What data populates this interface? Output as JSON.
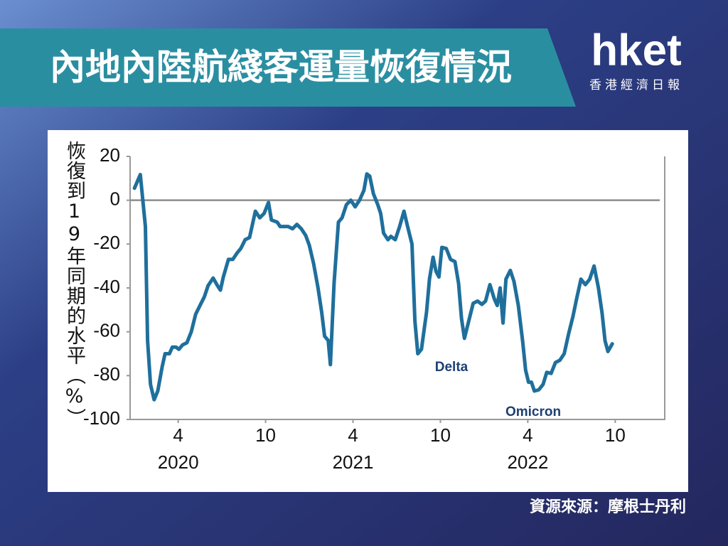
{
  "chart_data": {
    "type": "line",
    "title": "內地內陸航綫客運量恢復情況",
    "brand": "hket",
    "brand_subtitle": "香港經濟日報",
    "y_label": "恢復到19年同期的水平（%）",
    "source": "資源來源：摩根士丹利",
    "annotations": [
      "Delta",
      "Omicron"
    ],
    "color": "#1f6f9c",
    "x": [
      0,
      0.4,
      0.75,
      0.9,
      1.1,
      1.35,
      1.6,
      1.9,
      2.1,
      2.4,
      2.6,
      2.85,
      3.05,
      3.3,
      3.6,
      3.9,
      4.2,
      4.5,
      4.8,
      5.05,
      5.4,
      5.7,
      5.9,
      6.1,
      6.45,
      6.75,
      7.05,
      7.3,
      7.6,
      7.9,
      8.3,
      8.6,
      8.9,
      9.2,
      9.4,
      9.8,
      10,
      10.3,
      10.55,
      10.85,
      11.15,
      11.45,
      11.75,
      12,
      12.3,
      12.6,
      12.85,
      13.05,
      13.3,
      13.45,
      13.7,
      14,
      14.25,
      14.55,
      14.85,
      15.15,
      15.45,
      15.75,
      15.95,
      16.15,
      16.4,
      16.7,
      16.9,
      17.1,
      17.4,
      17.6,
      17.9,
      18.2,
      18.5,
      18.75,
      19.05,
      19.25,
      19.45,
      19.7,
      20.05,
      20.25,
      20.5,
      20.7,
      20.9,
      21.1,
      21.4,
      21.7,
      22,
      22.25,
      22.45,
      22.65,
      22.95,
      23.25,
      23.55,
      23.85,
      24.1,
      24.4,
      24.7,
      24.9,
      25.1,
      25.3,
      25.5,
      25.8,
      26.05,
      26.35,
      26.65,
      26.85,
      27.05,
      27.25,
      27.45,
      27.75,
      28.05,
      28.3,
      28.6,
      28.9,
      29.2,
      29.5,
      29.8,
      30.1,
      30.35,
      30.65,
      30.95,
      31.25,
      31.55,
      31.85,
      32.1,
      32.3,
      32.5,
      32.8
    ],
    "values": [
      5.5,
      11.7,
      -12,
      -64,
      -84,
      -91,
      -87,
      -76,
      -70,
      -70,
      -67,
      -67,
      -68,
      -66,
      -65,
      -60,
      -52,
      -48,
      -44,
      -39,
      -35.5,
      -39,
      -41,
      -35,
      -27,
      -27,
      -24,
      -22,
      -18,
      -17,
      -5,
      -8,
      -6,
      -1,
      -9,
      -10,
      -12,
      -12,
      -12,
      -13,
      -11,
      -13,
      -16,
      -20.5,
      -29,
      -40,
      -51,
      -62,
      -64,
      -75,
      -38,
      -10,
      -8,
      -2,
      0,
      -3,
      0,
      4.5,
      12,
      11,
      3,
      -2,
      -6,
      -15,
      -18,
      -16.5,
      -18,
      -12,
      -5,
      -12,
      -20,
      -55,
      -70,
      -68,
      -51,
      -36,
      -26,
      -32.5,
      -35,
      -21.5,
      -22,
      -27,
      -28,
      -38,
      -54,
      -63,
      -55,
      -47,
      -46,
      -47.5,
      -46,
      -38.5,
      -45,
      -48,
      -40,
      -56,
      -36,
      -32,
      -37,
      -48,
      -64.5,
      -77.5,
      -83,
      -83,
      -87,
      -86.5,
      -84,
      -78.5,
      -79,
      -74,
      -73,
      -70,
      -61,
      -53,
      -45,
      -36,
      -38.5,
      -36,
      -30,
      -40,
      -51.5,
      -64,
      -69,
      -65.5
    ],
    "xlim": [
      -0.3,
      36.4
    ],
    "xticks": [
      {
        "value": 3,
        "label": "4"
      },
      {
        "value": 9,
        "label": "10"
      },
      {
        "value": 15,
        "label": "4"
      },
      {
        "value": 21,
        "label": "10"
      },
      {
        "value": 27,
        "label": "4"
      },
      {
        "value": 33,
        "label": "10"
      }
    ],
    "xticks_year": [
      {
        "value": 3,
        "label": "2020"
      },
      {
        "value": 15,
        "label": "2021"
      },
      {
        "value": 27,
        "label": "2022"
      }
    ],
    "ylim": [
      -100,
      20
    ],
    "yticks": [
      20,
      0,
      -20,
      -40,
      -60,
      -80,
      -100
    ],
    "reference_line": 0
  }
}
